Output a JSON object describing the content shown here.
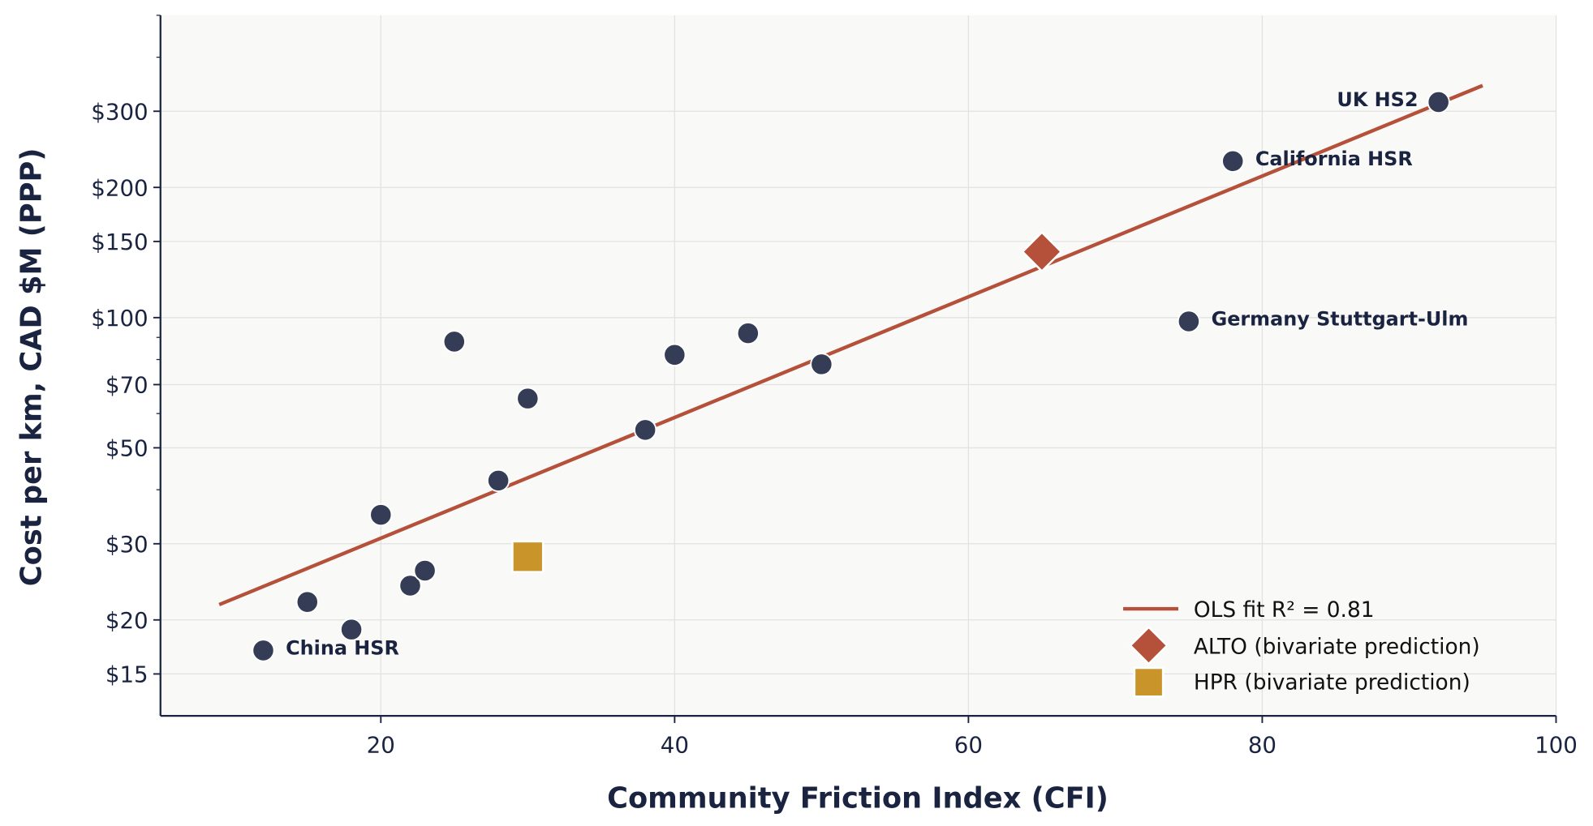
{
  "chart_data": {
    "type": "scatter",
    "title": "",
    "xlabel": "Community Friction Index  (CFI)",
    "ylabel": "Cost per km,  CAD $M (PPP)",
    "xlim": [
      5,
      100
    ],
    "ylim": [
      12,
      500
    ],
    "yscale": "log",
    "grid": true,
    "x_ticks": [
      20,
      40,
      60,
      80,
      100
    ],
    "y_ticks": [
      15,
      20,
      30,
      50,
      70,
      100,
      150,
      200,
      300
    ],
    "y_tick_labels": [
      "$15",
      "$20",
      "$30",
      "$50",
      "$70",
      "$100",
      "$150",
      "$200",
      "$300"
    ],
    "y_minor_ticks": [
      40,
      60,
      80,
      90,
      400,
      500
    ],
    "points": [
      {
        "x": 12,
        "y": 17,
        "label": "China HSR"
      },
      {
        "x": 15,
        "y": 22
      },
      {
        "x": 18,
        "y": 19
      },
      {
        "x": 20,
        "y": 35
      },
      {
        "x": 22,
        "y": 24
      },
      {
        "x": 23,
        "y": 26
      },
      {
        "x": 25,
        "y": 88
      },
      {
        "x": 28,
        "y": 42
      },
      {
        "x": 30,
        "y": 65
      },
      {
        "x": 38,
        "y": 55
      },
      {
        "x": 40,
        "y": 82
      },
      {
        "x": 45,
        "y": 92
      },
      {
        "x": 50,
        "y": 78
      },
      {
        "x": 75,
        "y": 98,
        "label": "Germany Stuttgart-Ulm"
      },
      {
        "x": 78,
        "y": 230,
        "label": "California HSR"
      },
      {
        "x": 92,
        "y": 315,
        "label": "UK HS2"
      }
    ],
    "fit_line": {
      "name": "OLS fit   R² = 0.81",
      "x": [
        9,
        95
      ],
      "y": [
        21.7,
        344
      ]
    },
    "predictions": [
      {
        "name": "ALTO  (bivariate prediction)",
        "x": 65,
        "y": 142,
        "marker": "diamond"
      },
      {
        "name": "HPR   (bivariate prediction)",
        "x": 30,
        "y": 28,
        "marker": "square"
      }
    ],
    "legend_placement": "lower-right",
    "colors": {
      "points": "#343d55",
      "fit_line": "#b5503a",
      "alto": "#b5503a",
      "hpr": "#c9952a",
      "text": "#1a2440",
      "plot_background": "#f9f9f7",
      "grid": "#e2e2e2"
    }
  }
}
